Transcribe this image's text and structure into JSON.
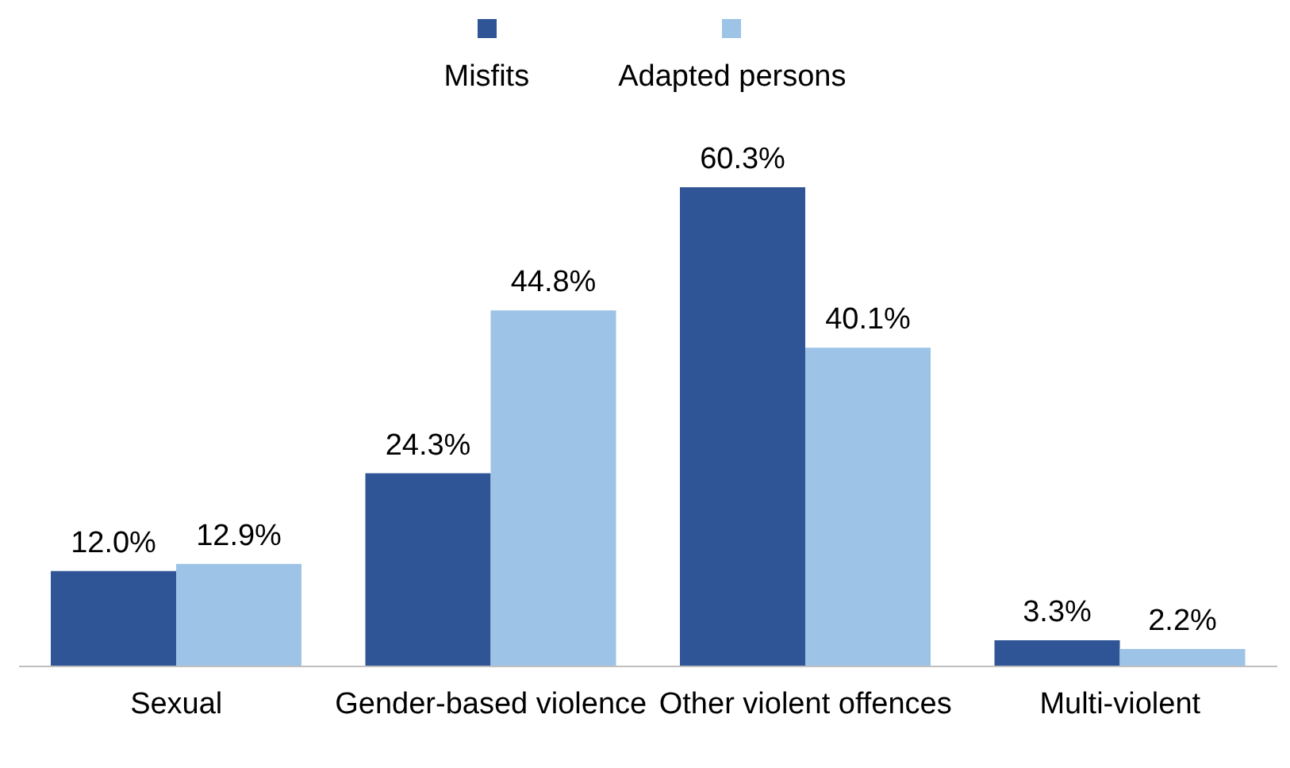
{
  "chart_data": {
    "type": "bar",
    "categories": [
      "Sexual",
      "Gender-based violence",
      "Other violent offences",
      "Multi-violent"
    ],
    "series": [
      {
        "name": "Misfits",
        "color": "#2f5597",
        "values": [
          12.0,
          24.3,
          60.3,
          3.3
        ],
        "value_labels": [
          "12.0%",
          "24.3%",
          "60.3%",
          "3.3%"
        ]
      },
      {
        "name": "Adapted persons",
        "color": "#9dc3e6",
        "values": [
          12.9,
          44.8,
          40.1,
          2.2
        ],
        "value_labels": [
          "12.9%",
          "44.8%",
          "40.1%",
          "2.2%"
        ]
      }
    ],
    "legend": "top",
    "grid": false
  }
}
